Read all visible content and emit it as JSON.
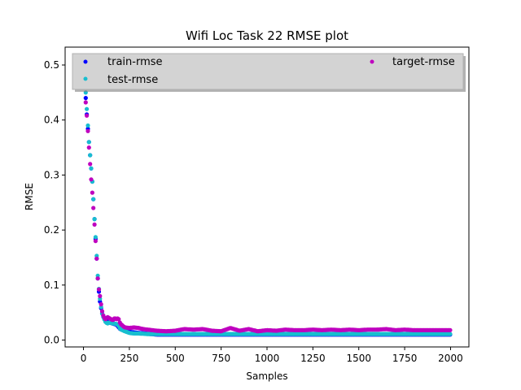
{
  "chart_data": {
    "type": "scatter",
    "title": "Wifi Loc Task 22 RMSE plot",
    "xlabel": "Samples",
    "ylabel": "RMSE",
    "xlim": [
      -100,
      2100
    ],
    "ylim": [
      -0.0125,
      0.5325
    ],
    "xticks": [
      0,
      250,
      500,
      750,
      1000,
      1250,
      1500,
      1750,
      2000
    ],
    "yticks": [
      0.0,
      0.1,
      0.2,
      0.3,
      0.4,
      0.5
    ],
    "xtick_labels": [
      "0",
      "250",
      "500",
      "750",
      "1000",
      "1250",
      "1500",
      "1750",
      "2000"
    ],
    "ytick_labels": [
      "0.0",
      "0.1",
      "0.2",
      "0.3",
      "0.4",
      "0.5"
    ],
    "grid": false,
    "legend_position": "top",
    "series": [
      {
        "name": "train-rmse",
        "color": "#0000ff",
        "x": [
          0,
          10,
          20,
          30,
          40,
          50,
          60,
          70,
          80,
          90,
          100,
          120,
          140,
          160,
          180,
          200,
          250,
          300,
          400,
          500,
          600,
          750,
          1000,
          1250,
          1500,
          1750,
          2000
        ],
        "y": [
          0.5,
          0.45,
          0.4,
          0.36,
          0.32,
          0.28,
          0.22,
          0.16,
          0.1,
          0.07,
          0.05,
          0.035,
          0.032,
          0.03,
          0.028,
          0.02,
          0.015,
          0.013,
          0.01,
          0.01,
          0.01,
          0.01,
          0.01,
          0.01,
          0.01,
          0.01,
          0.01
        ]
      },
      {
        "name": "test-rmse",
        "color": "#17becf",
        "x": [
          0,
          10,
          20,
          30,
          40,
          50,
          60,
          70,
          80,
          90,
          100,
          110,
          120,
          130,
          140,
          150,
          160,
          170,
          180,
          190,
          200,
          225,
          250,
          275,
          300,
          350,
          400,
          450,
          500,
          600,
          700,
          800,
          900,
          1000,
          1100,
          1200,
          1300,
          1400,
          1500,
          1600,
          1700,
          1800,
          1900,
          2000
        ],
        "y": [
          0.49,
          0.46,
          0.41,
          0.36,
          0.32,
          0.28,
          0.22,
          0.165,
          0.105,
          0.075,
          0.05,
          0.04,
          0.033,
          0.03,
          0.032,
          0.031,
          0.03,
          0.03,
          0.029,
          0.027,
          0.02,
          0.016,
          0.013,
          0.012,
          0.012,
          0.011,
          0.011,
          0.011,
          0.011,
          0.011,
          0.011,
          0.011,
          0.011,
          0.011,
          0.011,
          0.011,
          0.011,
          0.011,
          0.011,
          0.011,
          0.011,
          0.011,
          0.011,
          0.011
        ]
      },
      {
        "name": "target-rmse",
        "color": "#bf00bf",
        "x": [
          0,
          10,
          20,
          30,
          40,
          50,
          60,
          70,
          80,
          90,
          100,
          110,
          120,
          130,
          140,
          150,
          160,
          170,
          180,
          190,
          200,
          225,
          250,
          275,
          300,
          325,
          350,
          400,
          450,
          500,
          550,
          600,
          650,
          700,
          750,
          800,
          850,
          900,
          950,
          1000,
          1050,
          1100,
          1150,
          1200,
          1250,
          1300,
          1350,
          1400,
          1450,
          1500,
          1550,
          1600,
          1650,
          1700,
          1750,
          1800,
          1850,
          1900,
          1950,
          2000
        ],
        "y": [
          0.5,
          0.44,
          0.4,
          0.35,
          0.3,
          0.26,
          0.21,
          0.16,
          0.1,
          0.08,
          0.055,
          0.042,
          0.038,
          0.042,
          0.04,
          0.038,
          0.036,
          0.04,
          0.038,
          0.04,
          0.03,
          0.023,
          0.022,
          0.023,
          0.022,
          0.02,
          0.019,
          0.017,
          0.016,
          0.017,
          0.02,
          0.019,
          0.02,
          0.017,
          0.016,
          0.022,
          0.017,
          0.02,
          0.016,
          0.018,
          0.017,
          0.019,
          0.018,
          0.018,
          0.019,
          0.018,
          0.019,
          0.018,
          0.019,
          0.018,
          0.019,
          0.019,
          0.02,
          0.018,
          0.019,
          0.018,
          0.018,
          0.018,
          0.018,
          0.018
        ]
      }
    ]
  }
}
